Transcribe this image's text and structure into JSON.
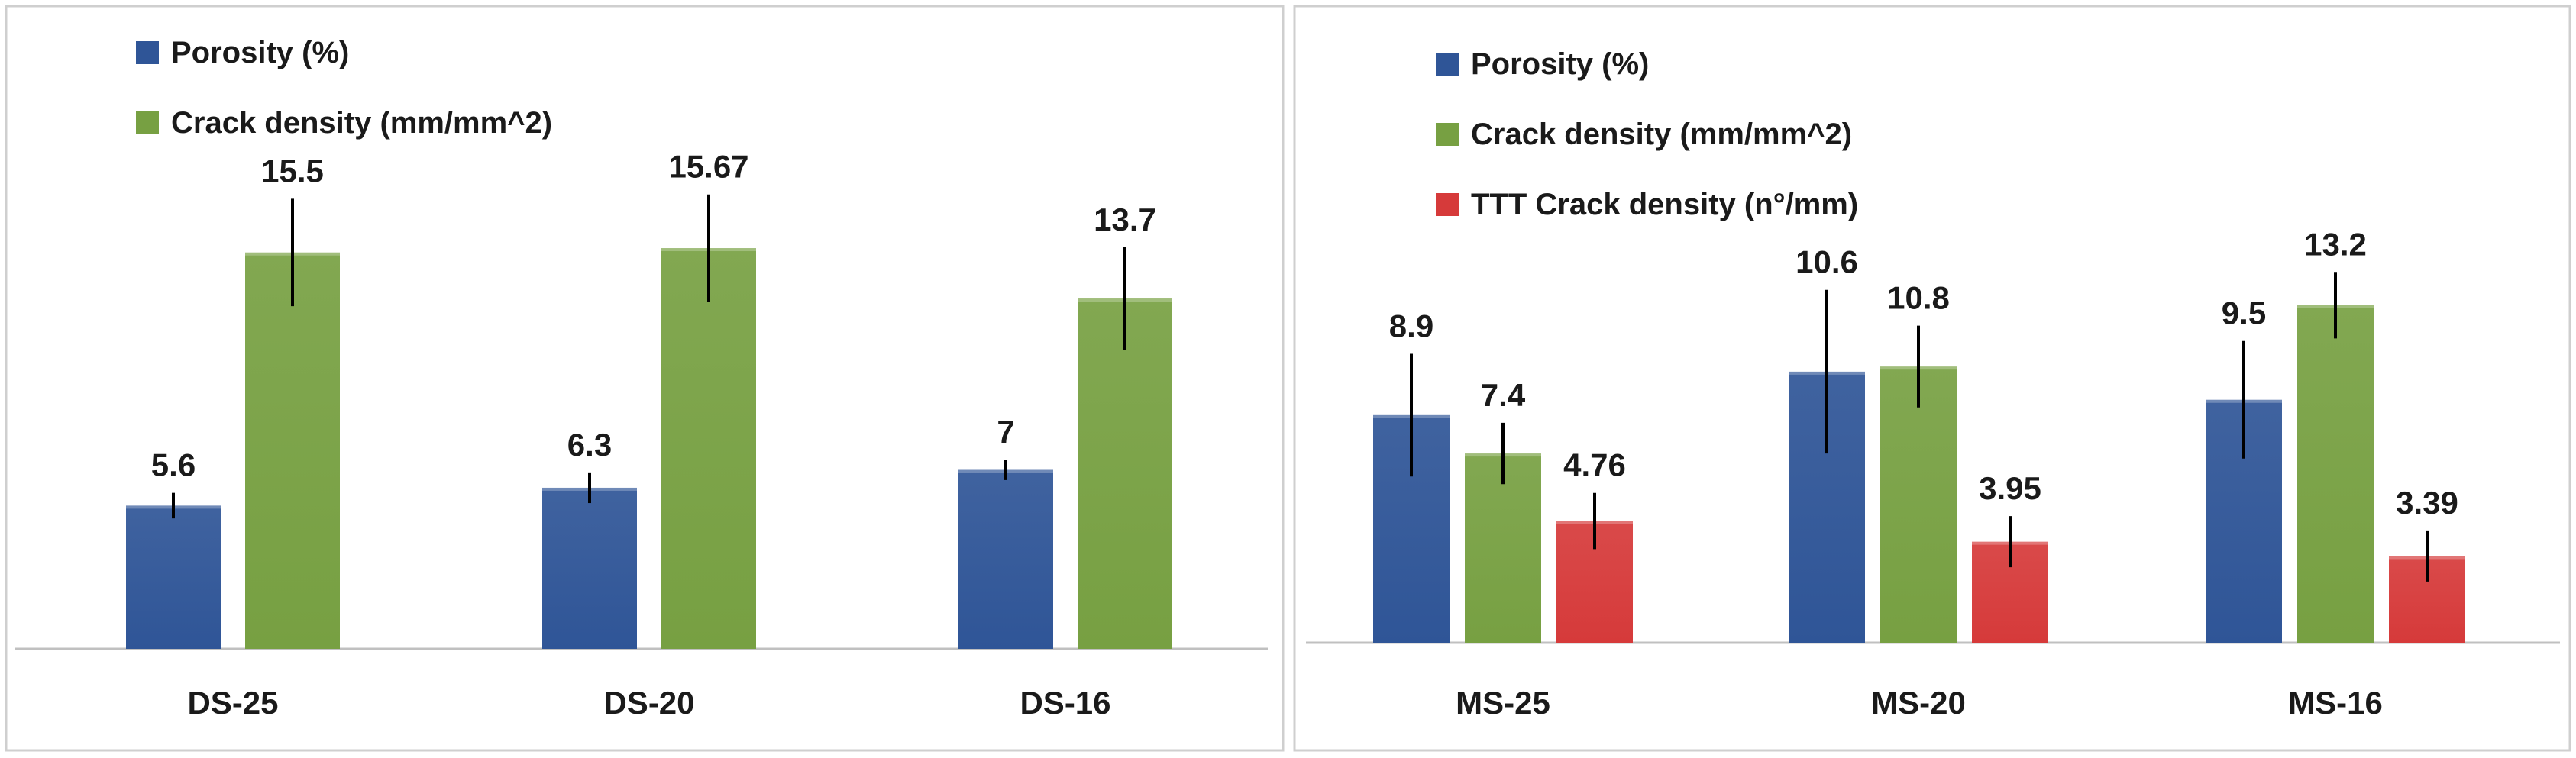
{
  "colors": {
    "porosity": "#2f5597",
    "crack": "#77a042",
    "ttt": "#d63a3a",
    "frame": "#cfcfcf",
    "axis": "#c0c0c0",
    "error": "#000000"
  },
  "chart_data": [
    {
      "type": "bar",
      "title": "",
      "xlabel": "",
      "ylabel": "",
      "ylim": [
        0,
        18
      ],
      "grid": false,
      "legend_position": "top-left",
      "categories": [
        "DS-25",
        "DS-20",
        "DS-16"
      ],
      "series": [
        {
          "name": "Porosity (%)",
          "color_key": "porosity",
          "values": [
            5.6,
            6.3,
            7
          ],
          "labels": [
            "5.6",
            "6.3",
            "7"
          ],
          "errors": [
            0.5,
            0.6,
            0.4
          ]
        },
        {
          "name": "Crack density (mm/mm^2)",
          "color_key": "crack",
          "values": [
            15.5,
            15.67,
            13.7
          ],
          "labels": [
            "15.5",
            "15.67",
            "13.7"
          ],
          "errors": [
            2.1,
            2.1,
            2.0
          ]
        }
      ]
    },
    {
      "type": "bar",
      "title": "",
      "xlabel": "",
      "ylabel": "",
      "ylim": [
        0,
        18
      ],
      "grid": false,
      "legend_position": "top-left",
      "categories": [
        "MS-25",
        "MS-20",
        "MS-16"
      ],
      "series": [
        {
          "name": "Porosity (%)",
          "color_key": "porosity",
          "values": [
            8.9,
            10.6,
            9.5
          ],
          "labels": [
            "8.9",
            "10.6",
            "9.5"
          ],
          "errors": [
            2.4,
            3.2,
            2.3
          ]
        },
        {
          "name": "Crack density (mm/mm^2)",
          "color_key": "crack",
          "values": [
            7.4,
            10.8,
            13.2
          ],
          "labels": [
            "7.4",
            "10.8",
            "13.2"
          ],
          "errors": [
            1.2,
            1.6,
            1.3
          ]
        },
        {
          "name": "TTT Crack density (n°/mm)",
          "color_key": "ttt",
          "values": [
            4.76,
            3.95,
            3.39
          ],
          "labels": [
            "4.76",
            "3.95",
            "3.39"
          ],
          "errors": [
            1.1,
            1.0,
            1.0
          ]
        }
      ]
    }
  ]
}
